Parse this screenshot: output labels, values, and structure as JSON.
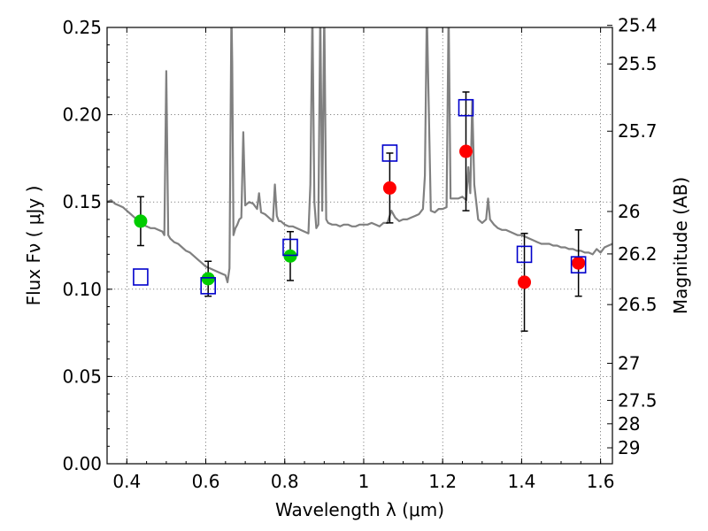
{
  "chart_data": {
    "type": "scatter",
    "xlabel": "Wavelength  λ (μm)",
    "ylabel": "Flux  Fν  ( μJy )",
    "y2label": "Magnitude (AB)",
    "xlim": [
      0.35,
      1.63
    ],
    "ylim": [
      0.0,
      0.25
    ],
    "grid": true,
    "x_ticks": [
      "0.4",
      "0.6",
      "0.8",
      "1",
      "1.2",
      "1.4",
      "1.6"
    ],
    "y_ticks": [
      "0.00",
      "0.05",
      "0.10",
      "0.15",
      "0.20",
      "0.25"
    ],
    "mag_ticks": [
      "25.4",
      "25.5",
      "25.7",
      "26",
      "26.2",
      "26.5",
      "27",
      "27.5",
      "28",
      "29"
    ],
    "series": [
      {
        "color": "#00cc00",
        "marker": "circle",
        "points": [
          {
            "x": 0.435,
            "y": 0.139,
            "err": 0.014
          },
          {
            "x": 0.606,
            "y": 0.106,
            "err": 0.01
          },
          {
            "x": 0.814,
            "y": 0.119,
            "err": 0.014
          }
        ]
      },
      {
        "color": "#ff0000",
        "marker": "circle",
        "points": [
          {
            "x": 1.066,
            "y": 0.158,
            "err": 0.02
          },
          {
            "x": 1.259,
            "y": 0.179,
            "err": 0.034
          },
          {
            "x": 1.407,
            "y": 0.104,
            "err": 0.028
          },
          {
            "x": 1.544,
            "y": 0.115,
            "err": 0.019
          }
        ]
      },
      {
        "color": "#0000cc",
        "marker": "open-square",
        "points": [
          {
            "x": 0.435,
            "y": 0.107
          },
          {
            "x": 0.606,
            "y": 0.102
          },
          {
            "x": 0.814,
            "y": 0.124
          },
          {
            "x": 1.066,
            "y": 0.178
          },
          {
            "x": 1.259,
            "y": 0.204
          },
          {
            "x": 1.407,
            "y": 0.12
          },
          {
            "x": 1.544,
            "y": 0.114
          }
        ]
      },
      {
        "color": "#808080",
        "marker": "line",
        "x": [
          0.35,
          0.36,
          0.37,
          0.38,
          0.39,
          0.4,
          0.41,
          0.42,
          0.43,
          0.44,
          0.45,
          0.46,
          0.47,
          0.48,
          0.49,
          0.495,
          0.5,
          0.505,
          0.51,
          0.52,
          0.53,
          0.54,
          0.55,
          0.56,
          0.57,
          0.58,
          0.59,
          0.6,
          0.61,
          0.62,
          0.63,
          0.64,
          0.65,
          0.655,
          0.66,
          0.665,
          0.667,
          0.67,
          0.675,
          0.68,
          0.685,
          0.69,
          0.695,
          0.7,
          0.71,
          0.72,
          0.73,
          0.735,
          0.74,
          0.75,
          0.76,
          0.77,
          0.775,
          0.78,
          0.785,
          0.79,
          0.8,
          0.81,
          0.82,
          0.83,
          0.84,
          0.85,
          0.86,
          0.865,
          0.87,
          0.875,
          0.88,
          0.885,
          0.89,
          0.895,
          0.9,
          0.905,
          0.91,
          0.92,
          0.93,
          0.94,
          0.95,
          0.96,
          0.97,
          0.98,
          0.99,
          1.0,
          1.01,
          1.02,
          1.03,
          1.04,
          1.05,
          1.06,
          1.07,
          1.08,
          1.09,
          1.1,
          1.11,
          1.12,
          1.13,
          1.14,
          1.15,
          1.155,
          1.16,
          1.17,
          1.18,
          1.19,
          1.2,
          1.21,
          1.215,
          1.22,
          1.23,
          1.24,
          1.25,
          1.26,
          1.265,
          1.27,
          1.275,
          1.28,
          1.285,
          1.29,
          1.3,
          1.31,
          1.315,
          1.32,
          1.33,
          1.34,
          1.35,
          1.36,
          1.37,
          1.38,
          1.39,
          1.4,
          1.41,
          1.42,
          1.43,
          1.44,
          1.45,
          1.46,
          1.47,
          1.48,
          1.49,
          1.5,
          1.51,
          1.52,
          1.53,
          1.54,
          1.55,
          1.56,
          1.57,
          1.58,
          1.59,
          1.6,
          1.61,
          1.62,
          1.63
        ],
        "y": [
          0.15,
          0.151,
          0.149,
          0.148,
          0.147,
          0.145,
          0.143,
          0.141,
          0.139,
          0.137,
          0.136,
          0.135,
          0.135,
          0.134,
          0.133,
          0.131,
          0.225,
          0.131,
          0.129,
          0.127,
          0.126,
          0.124,
          0.122,
          0.121,
          0.119,
          0.117,
          0.115,
          0.113,
          0.112,
          0.111,
          0.11,
          0.109,
          0.108,
          0.104,
          0.112,
          0.26,
          0.23,
          0.131,
          0.135,
          0.137,
          0.14,
          0.141,
          0.19,
          0.148,
          0.15,
          0.149,
          0.146,
          0.155,
          0.144,
          0.143,
          0.141,
          0.139,
          0.16,
          0.142,
          0.139,
          0.139,
          0.137,
          0.136,
          0.136,
          0.135,
          0.134,
          0.133,
          0.132,
          0.16,
          0.26,
          0.15,
          0.135,
          0.137,
          0.26,
          0.145,
          0.26,
          0.14,
          0.138,
          0.137,
          0.137,
          0.136,
          0.137,
          0.137,
          0.136,
          0.136,
          0.137,
          0.137,
          0.137,
          0.138,
          0.137,
          0.136,
          0.138,
          0.138,
          0.145,
          0.141,
          0.139,
          0.14,
          0.14,
          0.141,
          0.142,
          0.143,
          0.146,
          0.165,
          0.26,
          0.145,
          0.144,
          0.146,
          0.146,
          0.147,
          0.26,
          0.152,
          0.152,
          0.152,
          0.153,
          0.151,
          0.17,
          0.155,
          0.208,
          0.16,
          0.15,
          0.14,
          0.138,
          0.14,
          0.152,
          0.14,
          0.137,
          0.135,
          0.134,
          0.134,
          0.133,
          0.132,
          0.131,
          0.131,
          0.13,
          0.129,
          0.128,
          0.127,
          0.126,
          0.126,
          0.126,
          0.125,
          0.125,
          0.124,
          0.124,
          0.123,
          0.123,
          0.122,
          0.122,
          0.121,
          0.121,
          0.12,
          0.123,
          0.121,
          0.124,
          0.125,
          0.126
        ]
      }
    ]
  }
}
